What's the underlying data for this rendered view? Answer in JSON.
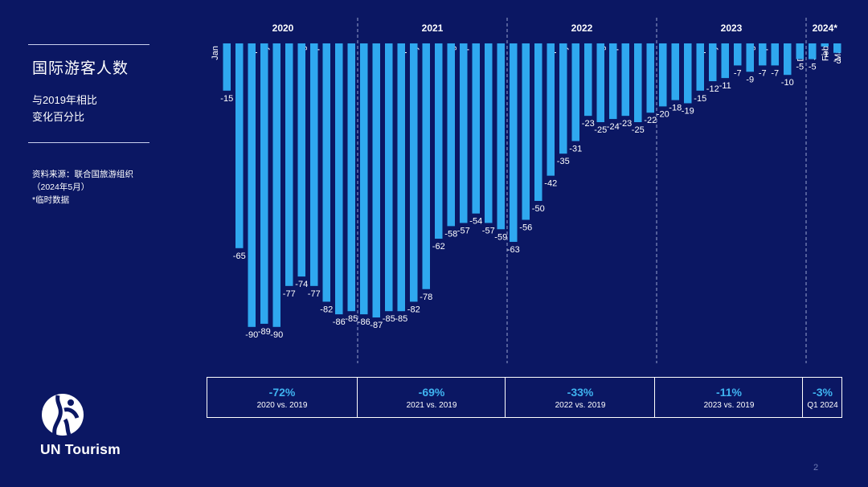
{
  "slide": {
    "title": "国际游客人数",
    "subtitle_line1": "与2019年相比",
    "subtitle_line2": "变化百分比",
    "source_line1": "资料来源：联合国旅游组织",
    "source_line2": "（2024年5月）",
    "source_line3": "*临时数据",
    "logo_text": "UN Tourism",
    "page_number": "2"
  },
  "colors": {
    "background": "#0b1763",
    "bar": "#2fa8ef",
    "summary_value": "#3fb3f0",
    "divider": "#9aa3cf"
  },
  "summary": [
    {
      "value": "-72%",
      "label": "2020 vs. 2019"
    },
    {
      "value": "-69%",
      "label": "2021 vs. 2019"
    },
    {
      "value": "-33%",
      "label": "2022 vs. 2019"
    },
    {
      "value": "-11%",
      "label": "2023 vs. 2019"
    },
    {
      "value": "-3%",
      "label": "Q1 2024"
    }
  ],
  "chart_data": {
    "type": "bar",
    "title": "国际游客人数",
    "ylabel": "与2019年相比变化百分比",
    "ylim": [
      -90,
      0
    ],
    "grid": false,
    "years": [
      {
        "label": "2020",
        "months": [
          "Jan",
          "Feb",
          "Mar",
          "Apr",
          "May",
          "Jun",
          "Jul",
          "Aug",
          "Sep",
          "Oct",
          "Nov",
          "Dec"
        ],
        "values": [
          null,
          -15,
          -65,
          -90,
          -89,
          -90,
          -77,
          -74,
          -77,
          -82,
          -86,
          -85
        ]
      },
      {
        "label": "2021",
        "months": [
          "Jan",
          "Feb",
          "Mar",
          "Apr",
          "May",
          "Jun",
          "Jul",
          "Aug",
          "Sep",
          "Oct",
          "Nov",
          "Dec"
        ],
        "values": [
          -86,
          -87,
          -85,
          -85,
          -82,
          -78,
          -62,
          -58,
          -57,
          -54,
          -57,
          -59
        ]
      },
      {
        "label": "2022",
        "months": [
          "Jan",
          "Feb",
          "Mar",
          "Apr",
          "May",
          "Jun",
          "Jul",
          "Aug",
          "Sep",
          "Oct",
          "Nov",
          "Dec"
        ],
        "values": [
          -63,
          -56,
          -50,
          -42,
          -35,
          -31,
          -23,
          -25,
          -24,
          -23,
          -25,
          -22
        ]
      },
      {
        "label": "2023",
        "months": [
          "Jan",
          "Feb",
          "Mar",
          "Apr",
          "May",
          "Jun",
          "Jul",
          "Aug",
          "Sep",
          "Oct",
          "Nov",
          "Dec"
        ],
        "values": [
          -20,
          -18,
          -19,
          -15,
          -12,
          -11,
          -7,
          -9,
          -7,
          -7,
          -10,
          -5
        ]
      },
      {
        "label": "2024*",
        "months": [
          "Jan",
          "Feb",
          "Mar"
        ],
        "values": [
          -5,
          -1,
          -3
        ]
      }
    ]
  }
}
